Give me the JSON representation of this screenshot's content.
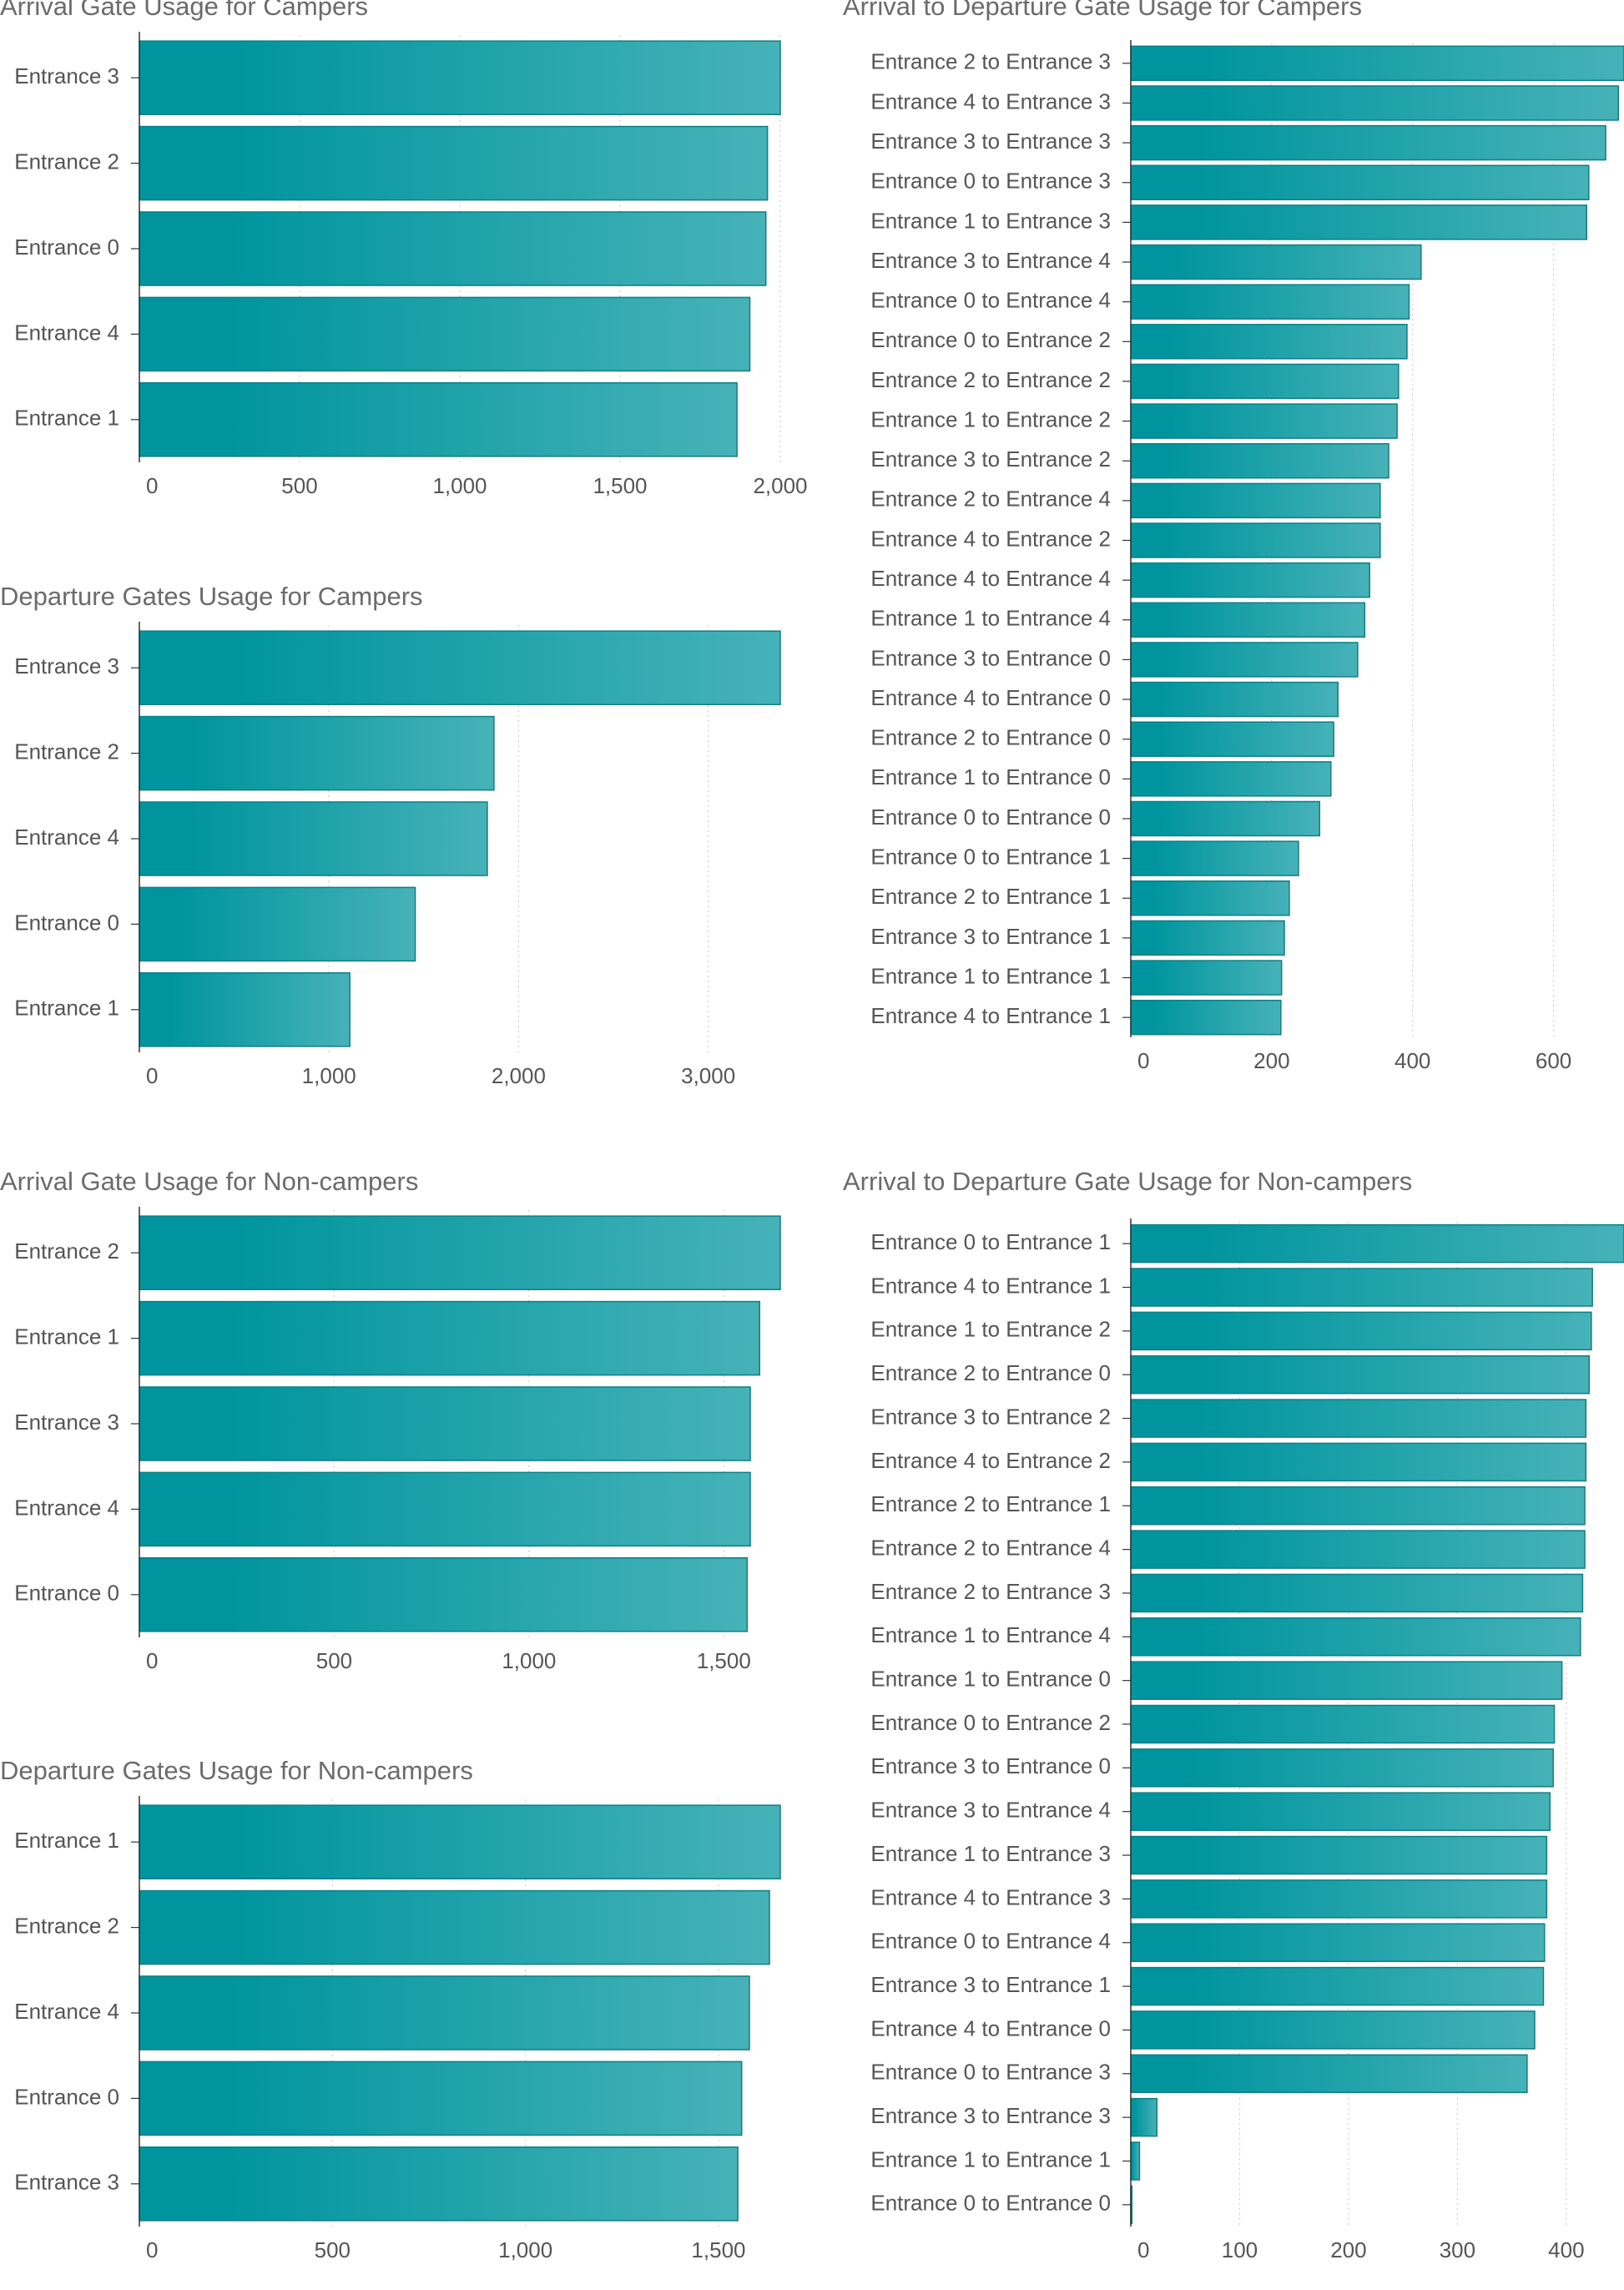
{
  "colors": {
    "bar_start": "#00959e",
    "bar_end": "#46b2b8",
    "bar_stroke": "#0c7f86",
    "axis": "#333333",
    "grid": "#cfcfcf",
    "text": "#555555"
  },
  "chart_data": [
    {
      "id": "arrival_campers",
      "type": "bar",
      "orientation": "horizontal",
      "title": "Arrival Gate Usage for Campers",
      "categories": [
        "Entrance 3",
        "Entrance 2",
        "Entrance 0",
        "Entrance 4",
        "Entrance 1"
      ],
      "values": [
        2000,
        1960,
        1955,
        1905,
        1865
      ],
      "xlim": [
        0,
        2000
      ],
      "xticks": [
        0,
        500,
        1000,
        1500,
        2000
      ],
      "xtick_labels": [
        "0",
        "500",
        "1,000",
        "1,500",
        "2,000"
      ],
      "grid": "vertical dotted"
    },
    {
      "id": "departure_campers",
      "type": "bar",
      "orientation": "horizontal",
      "title": "Departure Gates Usage for Campers",
      "categories": [
        "Entrance 3",
        "Entrance 2",
        "Entrance 4",
        "Entrance 0",
        "Entrance 1"
      ],
      "values": [
        3380,
        1870,
        1835,
        1455,
        1110
      ],
      "xlim": [
        0,
        3380
      ],
      "xticks": [
        0,
        1000,
        2000,
        3000
      ],
      "xtick_labels": [
        "0",
        "1,000",
        "2,000",
        "3,000"
      ],
      "grid": "vertical dotted"
    },
    {
      "id": "arrival_noncampers",
      "type": "bar",
      "orientation": "horizontal",
      "title": "Arrival Gate Usage for Non-campers",
      "categories": [
        "Entrance 2",
        "Entrance 1",
        "Entrance 3",
        "Entrance 4",
        "Entrance 0"
      ],
      "values": [
        1645,
        1592,
        1568,
        1568,
        1560
      ],
      "xlim": [
        0,
        1645
      ],
      "xticks": [
        0,
        500,
        1000,
        1500
      ],
      "xtick_labels": [
        "0",
        "500",
        "1,000",
        "1,500"
      ],
      "grid": "vertical dotted"
    },
    {
      "id": "departure_noncampers",
      "type": "bar",
      "orientation": "horizontal",
      "title": "Departure Gates Usage for Non-campers",
      "categories": [
        "Entrance 1",
        "Entrance 2",
        "Entrance 4",
        "Entrance 0",
        "Entrance 3"
      ],
      "values": [
        1660,
        1632,
        1580,
        1560,
        1550
      ],
      "xlim": [
        0,
        1660
      ],
      "xticks": [
        0,
        500,
        1000,
        1500
      ],
      "xtick_labels": [
        "0",
        "500",
        "1,000",
        "1,500"
      ],
      "grid": "vertical dotted"
    },
    {
      "id": "arr_dep_campers",
      "type": "bar",
      "orientation": "horizontal",
      "title": "Arrival to Departure Gate Usage for Campers",
      "categories": [
        "Entrance 2 to Entrance 3",
        "Entrance 4 to Entrance 3",
        "Entrance 3 to Entrance 3",
        "Entrance 0 to Entrance 3",
        "Entrance 1 to Entrance 3",
        "Entrance 3 to Entrance 4",
        "Entrance 0 to Entrance 4",
        "Entrance 0 to Entrance 2",
        "Entrance 2 to Entrance 2",
        "Entrance 1 to Entrance 2",
        "Entrance 3 to Entrance 2",
        "Entrance 2 to Entrance 4",
        "Entrance 4 to Entrance 2",
        "Entrance 4 to Entrance 4",
        "Entrance 1 to Entrance 4",
        "Entrance 3 to Entrance 0",
        "Entrance 4 to Entrance 0",
        "Entrance 2 to Entrance 0",
        "Entrance 1 to Entrance 0",
        "Entrance 0 to Entrance 0",
        "Entrance 0 to Entrance 1",
        "Entrance 2 to Entrance 1",
        "Entrance 3 to Entrance 1",
        "Entrance 1 to Entrance 1",
        "Entrance 4 to Entrance 1"
      ],
      "values": [
        700,
        692,
        674,
        650,
        647,
        412,
        395,
        392,
        380,
        378,
        366,
        354,
        354,
        339,
        332,
        322,
        294,
        288,
        284,
        268,
        238,
        225,
        218,
        214,
        213
      ],
      "xlim": [
        0,
        700
      ],
      "xticks": [
        0,
        200,
        400,
        600
      ],
      "xtick_labels": [
        "0",
        "200",
        "400",
        "600"
      ],
      "grid": "vertical dotted"
    },
    {
      "id": "arr_dep_noncampers",
      "type": "bar",
      "orientation": "horizontal",
      "title": "Arrival to Departure Gate Usage for Non-campers",
      "categories": [
        "Entrance 0 to Entrance 1",
        "Entrance 4 to Entrance 1",
        "Entrance 1 to Entrance 2",
        "Entrance 2 to Entrance 0",
        "Entrance 3 to Entrance 2",
        "Entrance 4 to Entrance 2",
        "Entrance 2 to Entrance 1",
        "Entrance 2 to Entrance 4",
        "Entrance 2 to Entrance 3",
        "Entrance 1 to Entrance 4",
        "Entrance 1 to Entrance 0",
        "Entrance 0 to Entrance 2",
        "Entrance 3 to Entrance 0",
        "Entrance 3 to Entrance 4",
        "Entrance 1 to Entrance 3",
        "Entrance 4 to Entrance 3",
        "Entrance 0 to Entrance 4",
        "Entrance 3 to Entrance 1",
        "Entrance 4 to Entrance 0",
        "Entrance 0 to Entrance 3",
        "Entrance 3 to Entrance 3",
        "Entrance 1 to Entrance 1",
        "Entrance 0 to Entrance 0"
      ],
      "values": [
        453,
        424,
        423,
        421,
        418,
        418,
        417,
        417,
        415,
        413,
        396,
        389,
        388,
        385,
        382,
        382,
        380,
        379,
        371,
        364,
        24,
        8,
        1
      ],
      "xlim": [
        0,
        453
      ],
      "xticks": [
        0,
        100,
        200,
        300,
        400
      ],
      "xtick_labels": [
        "0",
        "100",
        "200",
        "300",
        "400"
      ],
      "grid": "vertical dotted"
    }
  ]
}
